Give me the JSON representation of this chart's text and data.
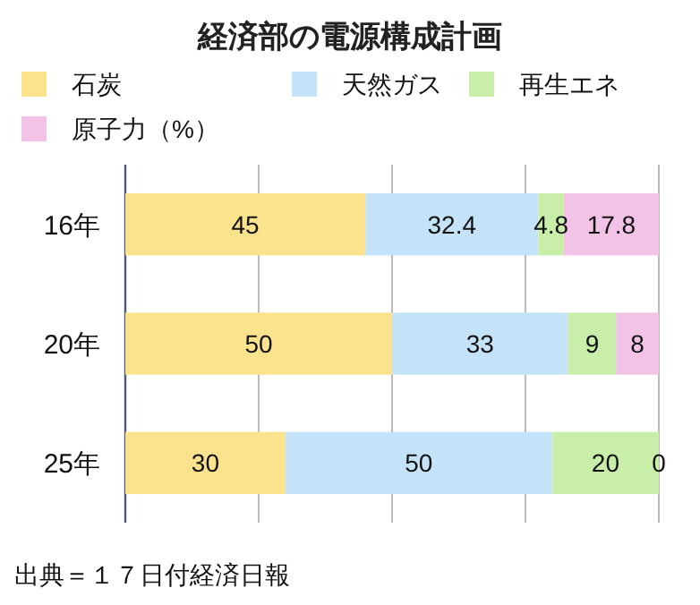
{
  "chart_data": {
    "type": "bar",
    "title": "経済部の電源構成計画",
    "orientation": "horizontal",
    "stacked": true,
    "categories": [
      "16年",
      "20年",
      "25年"
    ],
    "series": [
      {
        "name": "石炭",
        "color": "#fbe38e",
        "values": [
          45,
          50,
          30
        ]
      },
      {
        "name": "天然ガス",
        "color": "#c5e3f8",
        "values": [
          32.4,
          33,
          50
        ]
      },
      {
        "name": "再生エネ",
        "color": "#c9eeaa",
        "values": [
          4.8,
          9,
          20
        ]
      },
      {
        "name": "原子力（%）",
        "color": "#f2c3e6",
        "values": [
          17.8,
          8,
          0
        ]
      }
    ],
    "xlim": [
      0,
      100
    ],
    "xticks": [
      {
        "value": 0,
        "label": null
      },
      {
        "value": 25,
        "label": null
      },
      {
        "value": 50,
        "label": null
      },
      {
        "value": 75,
        "label": null
      },
      {
        "value": 100,
        "label": null
      }
    ],
    "grid": "x",
    "legend": "top",
    "tick_labels": "y",
    "data_labels": true,
    "annotations": [
      "出典＝１７日付経済日報"
    ]
  }
}
